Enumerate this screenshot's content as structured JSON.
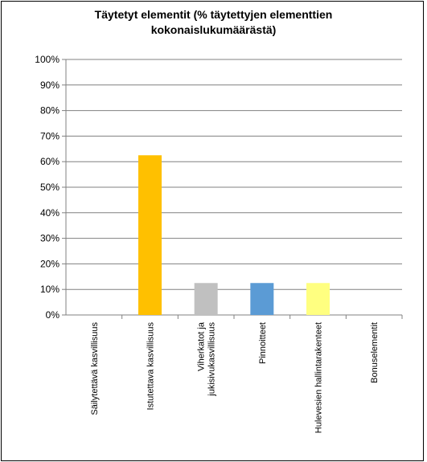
{
  "chart_data": {
    "type": "bar",
    "title_lines": [
      "Täytetyt elementit (% täytettyjen elementtien",
      "kokonaislukumäärästä)"
    ],
    "categories": [
      [
        "Säilytettävä kasvillisuus"
      ],
      [
        "Istutettava kasvillisuus"
      ],
      [
        "Viherkatot ja",
        "jukisivukasvillisuus"
      ],
      [
        "Pinnoitteet"
      ],
      [
        "Hulevesien hallintarakenteet"
      ],
      [
        "Bonuselementit"
      ]
    ],
    "values": [
      0,
      62.5,
      12.5,
      12.5,
      12.5,
      0
    ],
    "colors": [
      "#FFC000",
      "#FFC000",
      "#C0C0C0",
      "#5B9BD5",
      "#FFFF80",
      "#FFC000"
    ],
    "ylim": [
      0,
      100
    ],
    "yticks": [
      "0%",
      "10%",
      "20%",
      "30%",
      "40%",
      "50%",
      "60%",
      "70%",
      "80%",
      "90%",
      "100%"
    ],
    "grid": true,
    "legend": "none"
  }
}
